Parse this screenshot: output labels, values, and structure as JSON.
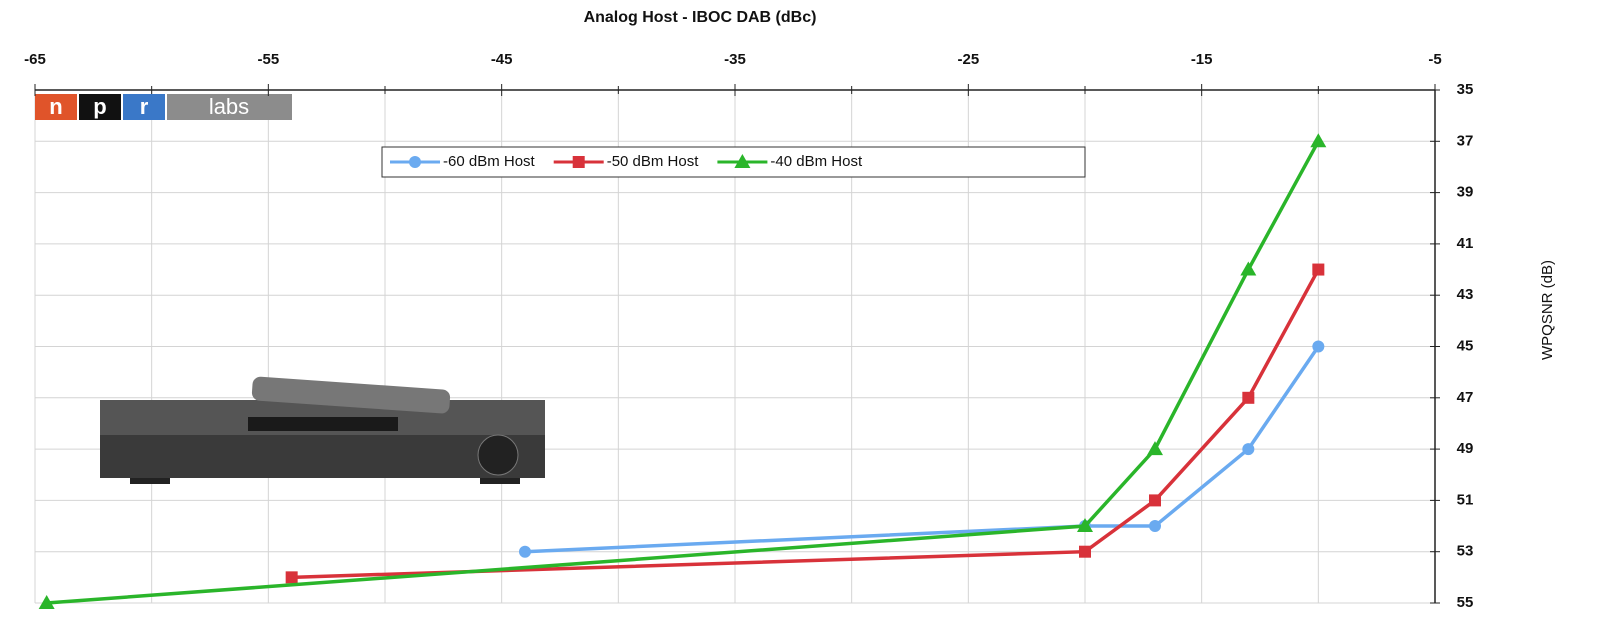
{
  "chart_data": {
    "type": "line",
    "title": "Analog Host - IBOC DAB (dBc)",
    "y_label": "WPQSNR (dB)",
    "logo": {
      "letters": [
        "n",
        "p",
        "r"
      ],
      "text": "labs"
    },
    "x_axis_position": "top",
    "y_axis_position": "right",
    "y_inverted": true,
    "xlim": [
      -65,
      -5
    ],
    "xticks": [
      -65,
      -55,
      -45,
      -35,
      -25,
      -15,
      -5
    ],
    "x_minor_ticks": [
      -60,
      -50,
      -40,
      -30,
      -20,
      -10
    ],
    "ylim": [
      35,
      55
    ],
    "yticks": [
      35,
      37,
      39,
      41,
      43,
      45,
      47,
      49,
      51,
      53,
      55
    ],
    "grid": true,
    "series": [
      {
        "name": "-60 dBm Host",
        "color": "#6aaaf0",
        "marker": "circle",
        "x": [
          -44,
          -20,
          -17,
          -13,
          -10
        ],
        "values": [
          53,
          52,
          52,
          49,
          45
        ]
      },
      {
        "name": "-50 dBm Host",
        "color": "#d8323a",
        "marker": "square",
        "x": [
          -54,
          -20,
          -17,
          -13,
          -10
        ],
        "values": [
          54,
          53,
          51,
          47,
          42
        ]
      },
      {
        "name": "-40 dBm Host",
        "color": "#2ab52a",
        "marker": "triangle",
        "x": [
          -64.5,
          -20,
          -17,
          -13,
          -10
        ],
        "values": [
          55,
          52,
          49,
          42,
          37
        ]
      }
    ]
  }
}
